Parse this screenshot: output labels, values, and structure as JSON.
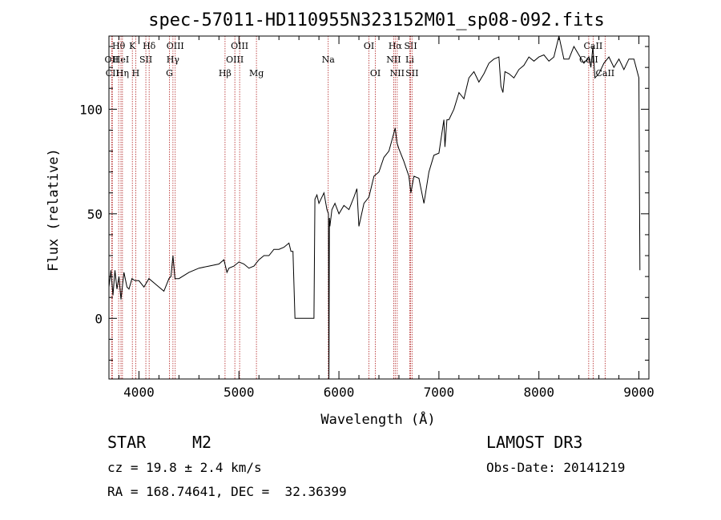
{
  "chart_data": {
    "type": "line",
    "title": "spec-57011-HD110955N323152M01_sp08-092.fits",
    "xlabel": "Wavelength (Å)",
    "ylabel": "Flux (relative)",
    "xlim": [
      3700,
      9100
    ],
    "ylim": [
      -29,
      135
    ],
    "xticks": [
      4000,
      5000,
      6000,
      7000,
      8000,
      9000
    ],
    "yticks": [
      0,
      50,
      100
    ],
    "series": [
      {
        "name": "spectrum",
        "x": [
          3700,
          3720,
          3740,
          3760,
          3780,
          3800,
          3820,
          3850,
          3880,
          3900,
          3930,
          3960,
          4000,
          4050,
          4100,
          4150,
          4200,
          4250,
          4300,
          4320,
          4340,
          4360,
          4400,
          4500,
          4600,
          4700,
          4800,
          4850,
          4880,
          4900,
          4950,
          5000,
          5050,
          5100,
          5150,
          5200,
          5250,
          5300,
          5350,
          5400,
          5450,
          5500,
          5520,
          5540,
          5560,
          5750,
          5760,
          5780,
          5800,
          5850,
          5880,
          5895,
          5900,
          5905,
          5910,
          5930,
          5960,
          6000,
          6050,
          6100,
          6150,
          6180,
          6200,
          6250,
          6300,
          6350,
          6400,
          6450,
          6500,
          6540,
          6563,
          6580,
          6600,
          6650,
          6700,
          6720,
          6750,
          6800,
          6850,
          6900,
          6950,
          7000,
          7050,
          7060,
          7080,
          7100,
          7150,
          7200,
          7250,
          7300,
          7350,
          7400,
          7450,
          7500,
          7550,
          7600,
          7620,
          7640,
          7660,
          7700,
          7750,
          7800,
          7850,
          7900,
          7950,
          8000,
          8050,
          8100,
          8150,
          8200,
          8250,
          8300,
          8350,
          8400,
          8450,
          8500,
          8520,
          8540,
          8560,
          8600,
          8650,
          8700,
          8750,
          8800,
          8850,
          8900,
          8950,
          9000,
          9010
        ],
        "values": [
          15,
          23,
          11,
          23,
          14,
          20,
          9,
          22,
          15,
          14,
          19,
          18,
          18,
          15,
          19,
          17,
          15,
          13,
          19,
          20,
          30,
          19,
          19,
          22,
          24,
          25,
          26,
          28,
          22,
          24,
          25,
          27,
          26,
          24,
          25,
          28,
          30,
          30,
          33,
          33,
          34,
          36,
          32,
          32,
          0,
          0,
          57,
          59,
          55,
          60,
          52,
          50,
          -29,
          48,
          44,
          52,
          55,
          50,
          54,
          52,
          58,
          62,
          44,
          55,
          58,
          68,
          70,
          77,
          80,
          87,
          91,
          84,
          81,
          75,
          68,
          60,
          68,
          67,
          55,
          70,
          78,
          79,
          95,
          82,
          95,
          95,
          100,
          108,
          105,
          115,
          118,
          113,
          117,
          122,
          124,
          125,
          111,
          108,
          118,
          117,
          115,
          119,
          121,
          125,
          123,
          125,
          126,
          123,
          125,
          135,
          124,
          124,
          130,
          126,
          122,
          125,
          120,
          130,
          115,
          117,
          122,
          125,
          120,
          124,
          119,
          124,
          124,
          115,
          23
        ]
      }
    ],
    "line_markers": [
      {
        "label": "Hθ",
        "wavelength": 3797,
        "row": 0
      },
      {
        "label": "OII",
        "wavelength": 3727,
        "row": 1
      },
      {
        "label": "CII",
        "wavelength": 3734,
        "row": 2
      },
      {
        "label": "HeI",
        "wavelength": 3820,
        "row": 1
      },
      {
        "label": "Hη",
        "wavelength": 3835,
        "row": 2
      },
      {
        "label": "K",
        "wavelength": 3934,
        "row": 0
      },
      {
        "label": "SII",
        "wavelength": 4069,
        "row": 1
      },
      {
        "label": "H",
        "wavelength": 3968,
        "row": 2
      },
      {
        "label": "Hδ",
        "wavelength": 4102,
        "row": 0
      },
      {
        "label": "OIII",
        "wavelength": 4363,
        "row": 0
      },
      {
        "label": "Hγ",
        "wavelength": 4340,
        "row": 1
      },
      {
        "label": "G",
        "wavelength": 4305,
        "row": 2
      },
      {
        "label": "Hβ",
        "wavelength": 4861,
        "row": 2
      },
      {
        "label": "OIII",
        "wavelength": 5007,
        "row": 0
      },
      {
        "label": "OIII",
        "wavelength": 4959,
        "row": 1
      },
      {
        "label": "Mg",
        "wavelength": 5175,
        "row": 2
      },
      {
        "label": "Na",
        "wavelength": 5893,
        "row": 1
      },
      {
        "label": "OI",
        "wavelength": 6300,
        "row": 0
      },
      {
        "label": "OI",
        "wavelength": 6364,
        "row": 2
      },
      {
        "label": "Hα",
        "wavelength": 6563,
        "row": 0
      },
      {
        "label": "NII",
        "wavelength": 6548,
        "row": 1
      },
      {
        "label": "NII",
        "wavelength": 6583,
        "row": 2
      },
      {
        "label": "SII",
        "wavelength": 6717,
        "row": 0
      },
      {
        "label": "Li",
        "wavelength": 6708,
        "row": 1
      },
      {
        "label": "SII",
        "wavelength": 6731,
        "row": 2
      },
      {
        "label": "CaII",
        "wavelength": 8542,
        "row": 0
      },
      {
        "label": "CaII",
        "wavelength": 8498,
        "row": 1
      },
      {
        "label": "CaII",
        "wavelength": 8662,
        "row": 2
      }
    ]
  },
  "info": {
    "object_class": "STAR",
    "subclass": "M2",
    "survey": "LAMOST DR3",
    "redshift": "cz = 19.8 ± 2.4 km/s",
    "obs_date": "Obs-Date: 20141219",
    "coords": "RA = 168.74641, DEC =  32.36399"
  },
  "colors": {
    "marker_line": "#b22222",
    "spectrum": "#000000"
  }
}
